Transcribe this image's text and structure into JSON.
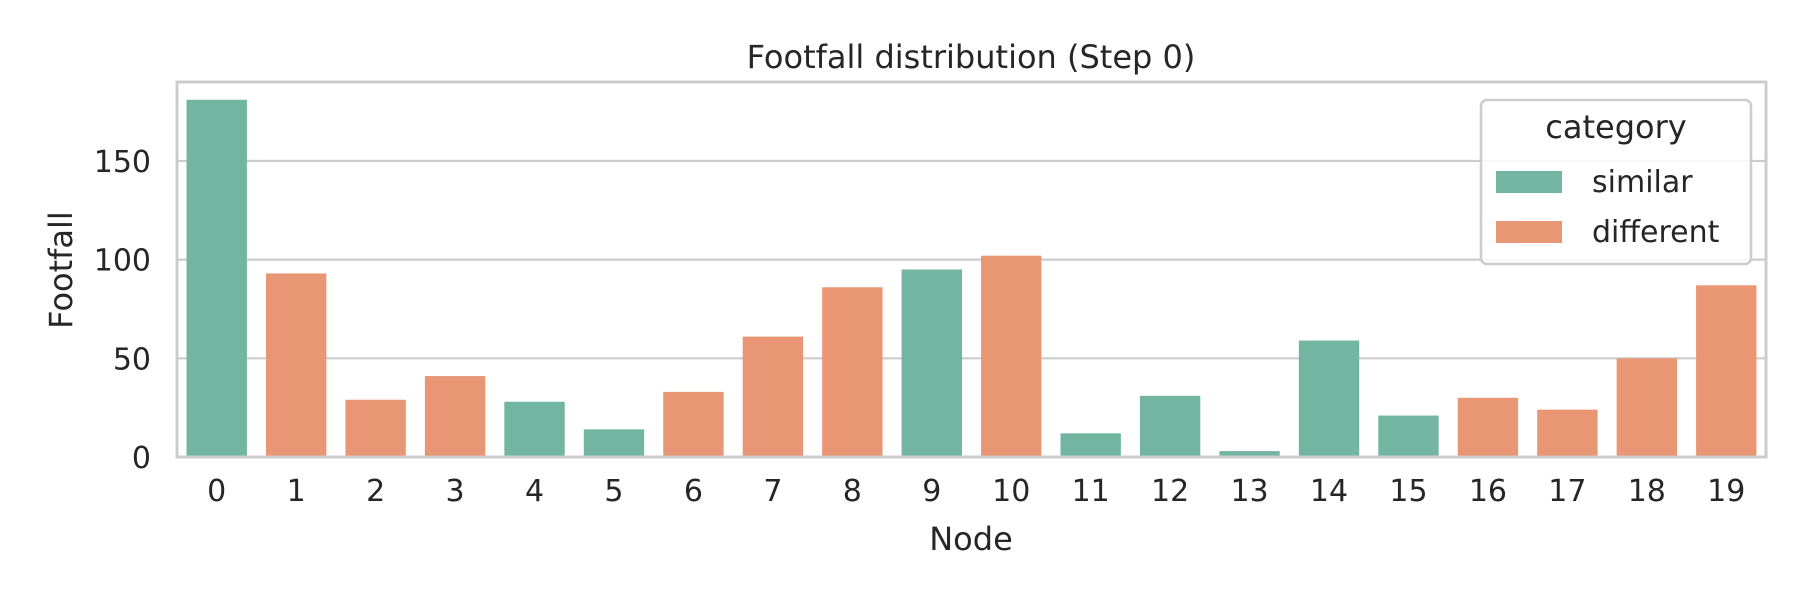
{
  "chart_data": {
    "type": "bar",
    "title": "Footfall distribution (Step 0)",
    "xlabel": "Node",
    "ylabel": "Footfall",
    "categories": [
      "0",
      "1",
      "2",
      "3",
      "4",
      "5",
      "6",
      "7",
      "8",
      "9",
      "10",
      "11",
      "12",
      "13",
      "14",
      "15",
      "16",
      "17",
      "18",
      "19"
    ],
    "values": [
      181,
      93,
      29,
      41,
      28,
      14,
      33,
      61,
      86,
      95,
      102,
      12,
      31,
      3,
      59,
      21,
      30,
      24,
      50,
      87
    ],
    "category_of_bar": [
      "similar",
      "different",
      "different",
      "different",
      "similar",
      "similar",
      "different",
      "different",
      "different",
      "similar",
      "different",
      "similar",
      "similar",
      "similar",
      "similar",
      "similar",
      "different",
      "different",
      "different",
      "different"
    ],
    "ylim": [
      0,
      190
    ],
    "yticks": [
      0,
      50,
      100,
      150
    ],
    "grid": true,
    "legend": {
      "title": "category",
      "placement": "top-right",
      "entries": [
        {
          "name": "similar",
          "color": "#72b6a1"
        },
        {
          "name": "different",
          "color": "#e99675"
        }
      ]
    }
  }
}
